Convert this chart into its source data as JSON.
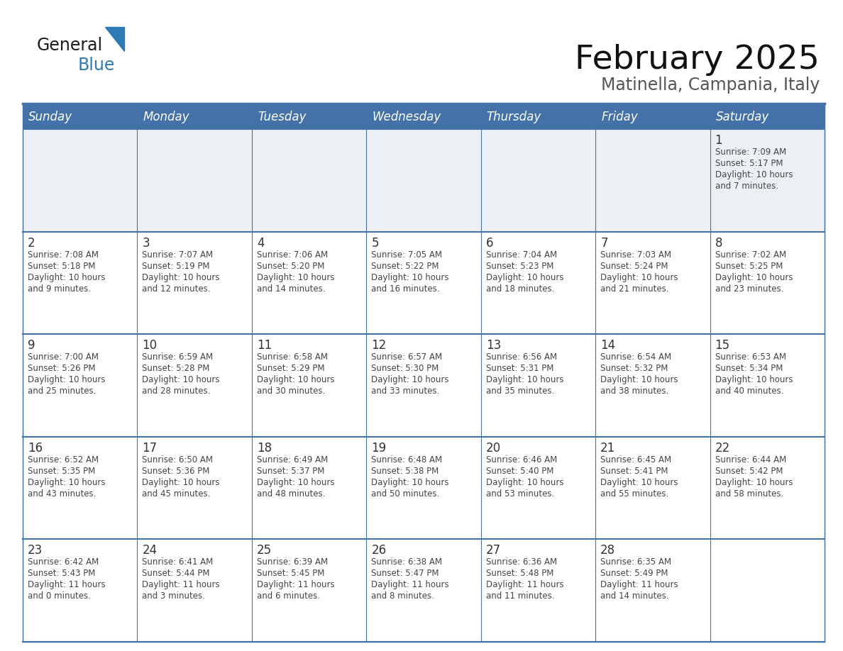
{
  "title": "February 2025",
  "subtitle": "Matinella, Campania, Italy",
  "days_of_week": [
    "Sunday",
    "Monday",
    "Tuesday",
    "Wednesday",
    "Thursday",
    "Friday",
    "Saturday"
  ],
  "header_bg": "#4472a8",
  "header_text_color": "#ffffff",
  "cell_bg": "#ffffff",
  "row0_bg": "#edf1f5",
  "grid_line_color": "#4472a8",
  "text_color": "#444444",
  "day_num_color": "#333333",
  "title_color": "#111111",
  "subtitle_color": "#555555",
  "logo_general_color": "#1a1a1a",
  "logo_blue_color": "#2e7ab5",
  "calendar": [
    [
      {
        "day": null,
        "info": null
      },
      {
        "day": null,
        "info": null
      },
      {
        "day": null,
        "info": null
      },
      {
        "day": null,
        "info": null
      },
      {
        "day": null,
        "info": null
      },
      {
        "day": null,
        "info": null
      },
      {
        "day": 1,
        "info": "Sunrise: 7:09 AM\nSunset: 5:17 PM\nDaylight: 10 hours\nand 7 minutes."
      }
    ],
    [
      {
        "day": 2,
        "info": "Sunrise: 7:08 AM\nSunset: 5:18 PM\nDaylight: 10 hours\nand 9 minutes."
      },
      {
        "day": 3,
        "info": "Sunrise: 7:07 AM\nSunset: 5:19 PM\nDaylight: 10 hours\nand 12 minutes."
      },
      {
        "day": 4,
        "info": "Sunrise: 7:06 AM\nSunset: 5:20 PM\nDaylight: 10 hours\nand 14 minutes."
      },
      {
        "day": 5,
        "info": "Sunrise: 7:05 AM\nSunset: 5:22 PM\nDaylight: 10 hours\nand 16 minutes."
      },
      {
        "day": 6,
        "info": "Sunrise: 7:04 AM\nSunset: 5:23 PM\nDaylight: 10 hours\nand 18 minutes."
      },
      {
        "day": 7,
        "info": "Sunrise: 7:03 AM\nSunset: 5:24 PM\nDaylight: 10 hours\nand 21 minutes."
      },
      {
        "day": 8,
        "info": "Sunrise: 7:02 AM\nSunset: 5:25 PM\nDaylight: 10 hours\nand 23 minutes."
      }
    ],
    [
      {
        "day": 9,
        "info": "Sunrise: 7:00 AM\nSunset: 5:26 PM\nDaylight: 10 hours\nand 25 minutes."
      },
      {
        "day": 10,
        "info": "Sunrise: 6:59 AM\nSunset: 5:28 PM\nDaylight: 10 hours\nand 28 minutes."
      },
      {
        "day": 11,
        "info": "Sunrise: 6:58 AM\nSunset: 5:29 PM\nDaylight: 10 hours\nand 30 minutes."
      },
      {
        "day": 12,
        "info": "Sunrise: 6:57 AM\nSunset: 5:30 PM\nDaylight: 10 hours\nand 33 minutes."
      },
      {
        "day": 13,
        "info": "Sunrise: 6:56 AM\nSunset: 5:31 PM\nDaylight: 10 hours\nand 35 minutes."
      },
      {
        "day": 14,
        "info": "Sunrise: 6:54 AM\nSunset: 5:32 PM\nDaylight: 10 hours\nand 38 minutes."
      },
      {
        "day": 15,
        "info": "Sunrise: 6:53 AM\nSunset: 5:34 PM\nDaylight: 10 hours\nand 40 minutes."
      }
    ],
    [
      {
        "day": 16,
        "info": "Sunrise: 6:52 AM\nSunset: 5:35 PM\nDaylight: 10 hours\nand 43 minutes."
      },
      {
        "day": 17,
        "info": "Sunrise: 6:50 AM\nSunset: 5:36 PM\nDaylight: 10 hours\nand 45 minutes."
      },
      {
        "day": 18,
        "info": "Sunrise: 6:49 AM\nSunset: 5:37 PM\nDaylight: 10 hours\nand 48 minutes."
      },
      {
        "day": 19,
        "info": "Sunrise: 6:48 AM\nSunset: 5:38 PM\nDaylight: 10 hours\nand 50 minutes."
      },
      {
        "day": 20,
        "info": "Sunrise: 6:46 AM\nSunset: 5:40 PM\nDaylight: 10 hours\nand 53 minutes."
      },
      {
        "day": 21,
        "info": "Sunrise: 6:45 AM\nSunset: 5:41 PM\nDaylight: 10 hours\nand 55 minutes."
      },
      {
        "day": 22,
        "info": "Sunrise: 6:44 AM\nSunset: 5:42 PM\nDaylight: 10 hours\nand 58 minutes."
      }
    ],
    [
      {
        "day": 23,
        "info": "Sunrise: 6:42 AM\nSunset: 5:43 PM\nDaylight: 11 hours\nand 0 minutes."
      },
      {
        "day": 24,
        "info": "Sunrise: 6:41 AM\nSunset: 5:44 PM\nDaylight: 11 hours\nand 3 minutes."
      },
      {
        "day": 25,
        "info": "Sunrise: 6:39 AM\nSunset: 5:45 PM\nDaylight: 11 hours\nand 6 minutes."
      },
      {
        "day": 26,
        "info": "Sunrise: 6:38 AM\nSunset: 5:47 PM\nDaylight: 11 hours\nand 8 minutes."
      },
      {
        "day": 27,
        "info": "Sunrise: 6:36 AM\nSunset: 5:48 PM\nDaylight: 11 hours\nand 11 minutes."
      },
      {
        "day": 28,
        "info": "Sunrise: 6:35 AM\nSunset: 5:49 PM\nDaylight: 11 hours\nand 14 minutes."
      },
      {
        "day": null,
        "info": null
      }
    ]
  ]
}
